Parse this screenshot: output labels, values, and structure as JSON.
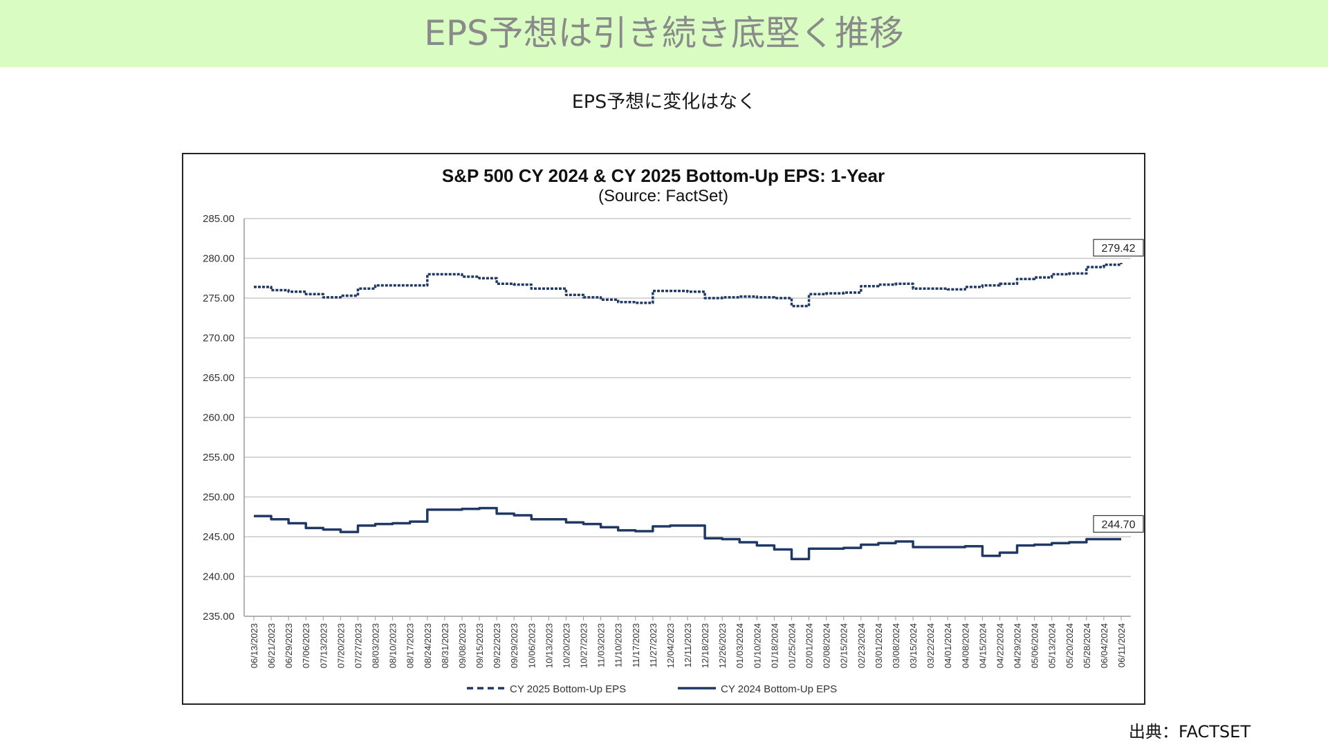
{
  "banner": {
    "title": "EPS予想は引き続き底堅く推移"
  },
  "subtitle": "EPS予想に変化はなく",
  "source_note": "出典：FACTSET",
  "chart_data": {
    "type": "line",
    "title": "S&P 500 CY 2024 & CY 2025 Bottom-Up  EPS: 1-Year",
    "subtitle": "(Source: FactSet)",
    "xlabel": "",
    "ylabel": "",
    "ylim": [
      235,
      285
    ],
    "yticks": [
      "235.00",
      "240.00",
      "245.00",
      "250.00",
      "255.00",
      "260.00",
      "265.00",
      "270.00",
      "275.00",
      "280.00",
      "285.00"
    ],
    "grid": true,
    "legend_position": "bottom",
    "categories": [
      "06/13/2023",
      "06/21/2023",
      "06/29/2023",
      "07/06/2023",
      "07/13/2023",
      "07/20/2023",
      "07/27/2023",
      "08/03/2023",
      "08/10/2023",
      "08/17/2023",
      "08/24/2023",
      "08/31/2023",
      "09/08/2023",
      "09/15/2023",
      "09/22/2023",
      "09/29/2023",
      "10/06/2023",
      "10/13/2023",
      "10/20/2023",
      "10/27/2023",
      "11/03/2023",
      "11/10/2023",
      "11/17/2023",
      "11/27/2023",
      "12/04/2023",
      "12/11/2023",
      "12/18/2023",
      "12/26/2023",
      "01/03/2024",
      "01/10/2024",
      "01/18/2024",
      "01/25/2024",
      "02/01/2024",
      "02/08/2024",
      "02/15/2024",
      "02/23/2024",
      "03/01/2024",
      "03/08/2024",
      "03/15/2024",
      "03/22/2024",
      "04/01/2024",
      "04/08/2024",
      "04/15/2024",
      "04/22/2024",
      "04/29/2024",
      "05/06/2024",
      "05/13/2024",
      "05/20/2024",
      "05/28/2024",
      "06/04/2024",
      "06/11/2024"
    ],
    "series": [
      {
        "name": "CY 2025 Bottom-Up EPS",
        "style": "dashed",
        "color": "#1f3864",
        "end_label": "279.42",
        "values": [
          276.4,
          276.0,
          275.8,
          275.5,
          275.1,
          275.3,
          276.2,
          276.6,
          276.6,
          276.6,
          278.0,
          278.0,
          277.7,
          277.5,
          276.8,
          276.7,
          276.2,
          276.2,
          275.4,
          275.1,
          274.8,
          274.5,
          274.4,
          275.9,
          275.9,
          275.8,
          275.0,
          275.1,
          275.2,
          275.1,
          275.0,
          274.0,
          275.5,
          275.6,
          275.7,
          276.5,
          276.7,
          276.8,
          276.2,
          276.2,
          276.1,
          276.4,
          276.6,
          276.8,
          277.4,
          277.6,
          278.0,
          278.1,
          278.9,
          279.2,
          279.42
        ]
      },
      {
        "name": "CY 2024 Bottom-Up EPS",
        "style": "solid",
        "color": "#1f3864",
        "end_label": "244.70",
        "values": [
          247.6,
          247.2,
          246.7,
          246.1,
          245.9,
          245.6,
          246.4,
          246.6,
          246.7,
          246.9,
          248.4,
          248.4,
          248.5,
          248.6,
          247.9,
          247.7,
          247.2,
          247.2,
          246.8,
          246.6,
          246.2,
          245.8,
          245.7,
          246.3,
          246.4,
          246.4,
          244.8,
          244.7,
          244.3,
          243.9,
          243.4,
          242.2,
          243.5,
          243.5,
          243.6,
          244.0,
          244.2,
          244.4,
          243.7,
          243.7,
          243.7,
          243.8,
          242.6,
          243.0,
          243.9,
          244.0,
          244.2,
          244.3,
          244.7,
          244.7,
          244.7
        ]
      }
    ]
  }
}
